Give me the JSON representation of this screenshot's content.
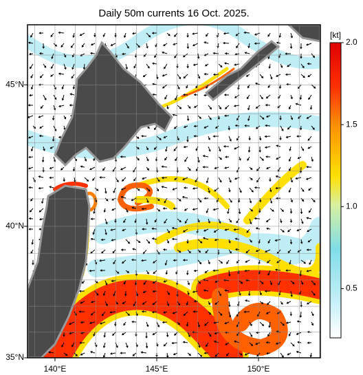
{
  "title": "Daily 50m currents 16 Oct. 2025.",
  "map": {
    "lonlim": [
      138.65,
      153.04
    ],
    "latlim": [
      35,
      47
    ],
    "lon_ticks": [
      {
        "value": 140,
        "label": "140°E"
      },
      {
        "value": 145,
        "label": "145°E"
      },
      {
        "value": 150,
        "label": "150°E"
      }
    ],
    "lat_ticks": [
      {
        "value": 35,
        "label": "35°N"
      },
      {
        "value": 40,
        "label": "40°N"
      },
      {
        "value": 45,
        "label": "45°N"
      }
    ]
  },
  "colorbar": {
    "unit": "[kt]",
    "lim": [
      0.2,
      2.0
    ],
    "ticks": [
      {
        "value": 0.5,
        "label": "0.5"
      },
      {
        "value": 1.0,
        "label": "1.0"
      },
      {
        "value": 1.5,
        "label": "1.5"
      },
      {
        "value": 2.0,
        "label": "2.0"
      }
    ]
  }
}
